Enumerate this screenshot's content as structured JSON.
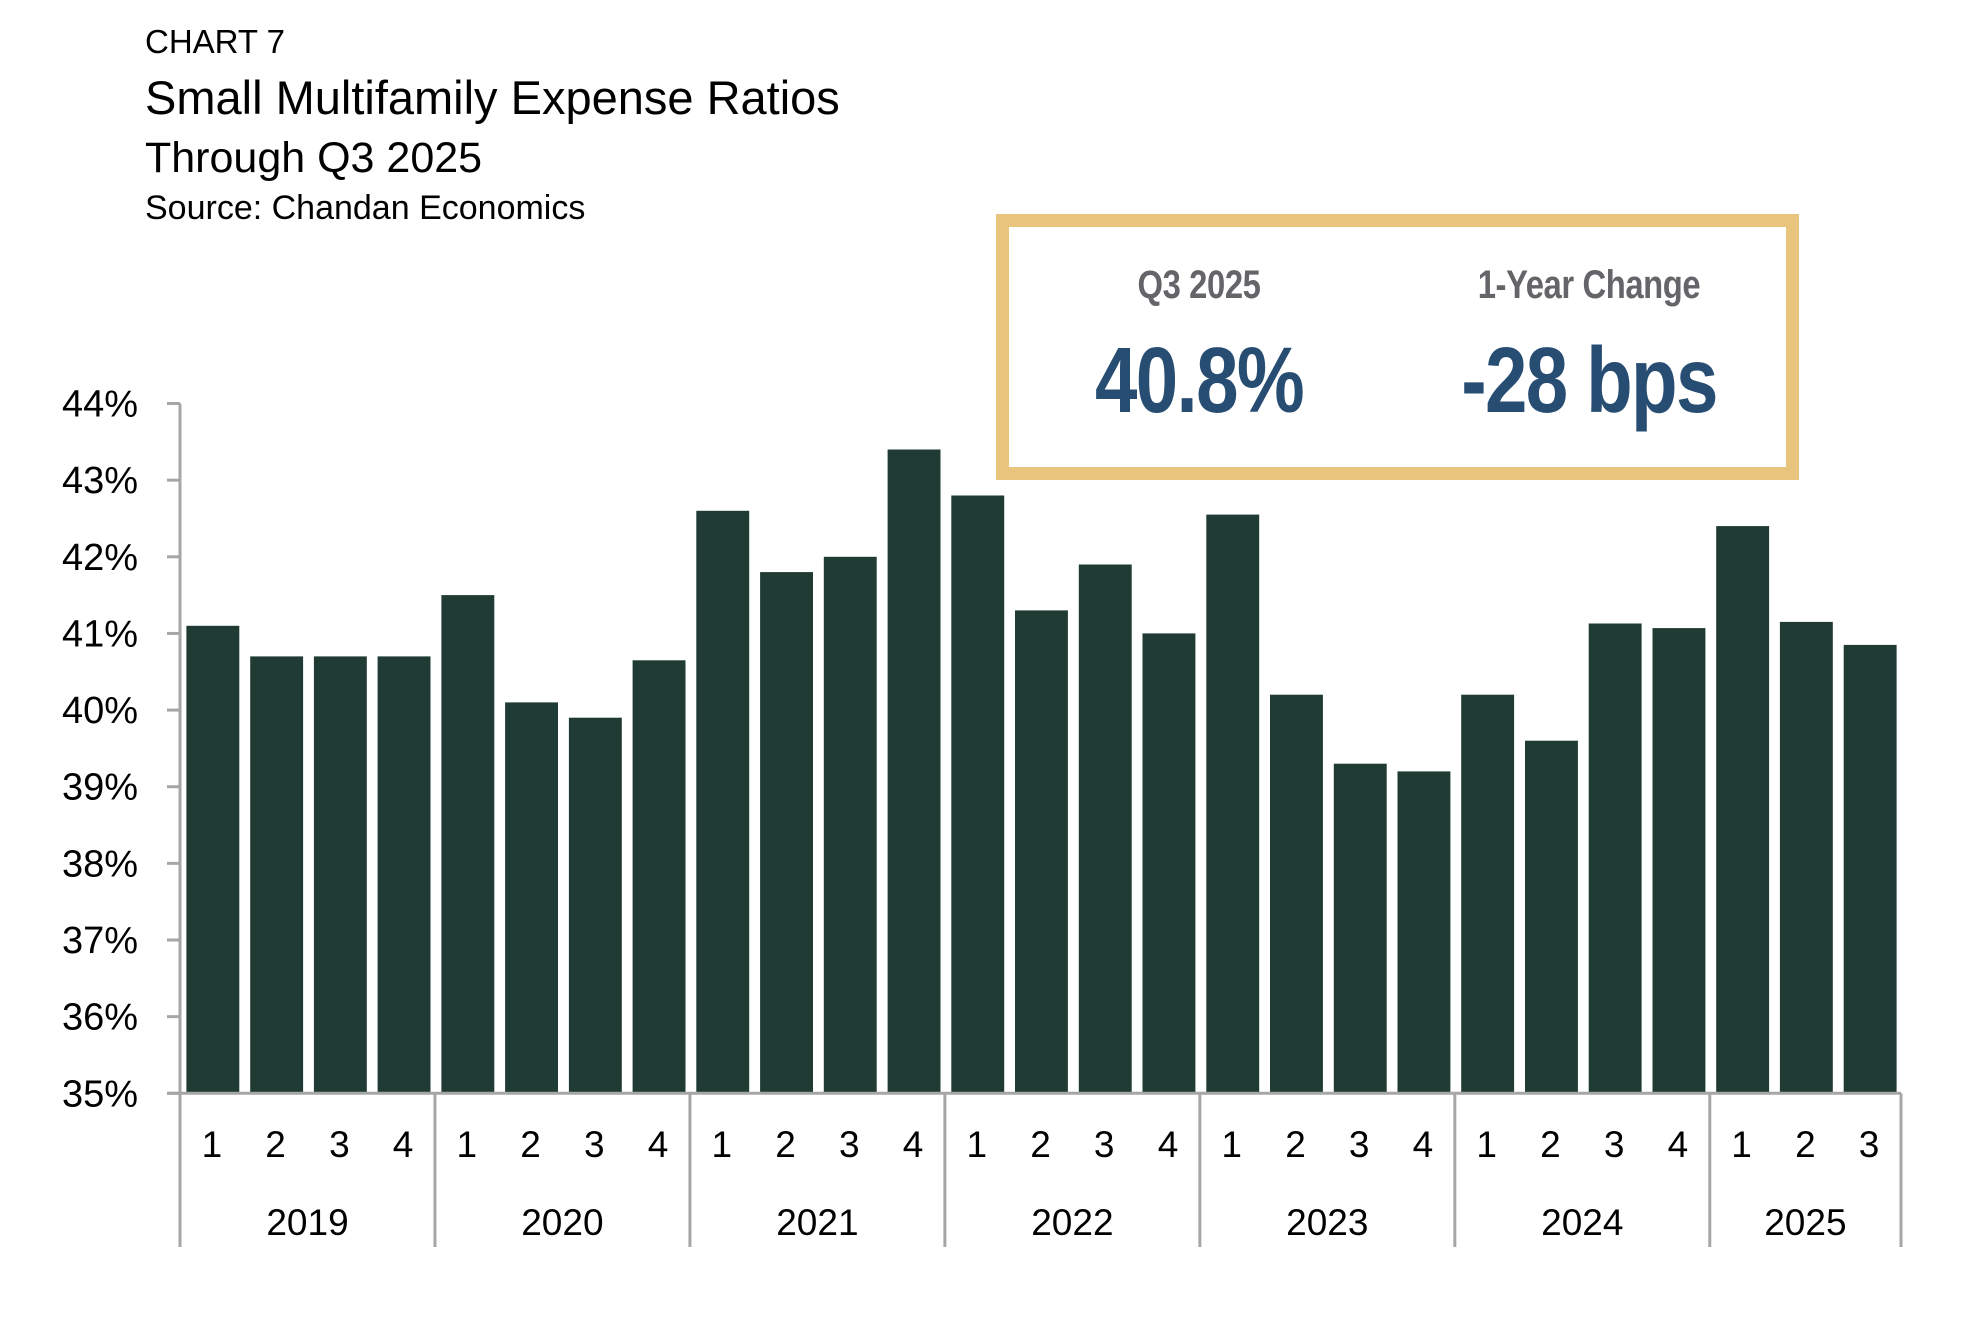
{
  "header": {
    "chart_label": "CHART 7",
    "title": "Small Multifamily Expense Ratios",
    "subtitle": "Through Q3 2025",
    "source": "Source: Chandan Economics"
  },
  "kpis": [
    {
      "label": "Q3 2025",
      "value": "40.8%"
    },
    {
      "label": "1-Year Change",
      "value": "-28 bps"
    }
  ],
  "colors": {
    "bar": "#1F3B33",
    "axis": "#A6A6A6",
    "kpi_border": "#E8C47C",
    "kpi_label": "#646569",
    "kpi_value": "#284D73"
  },
  "chart_data": {
    "type": "bar",
    "title": "Small Multifamily Expense Ratios",
    "subtitle": "Through Q3 2025",
    "source": "Chandan Economics",
    "xlabel": "",
    "ylabel": "",
    "ylim": [
      35,
      44
    ],
    "yticks": [
      35,
      36,
      37,
      38,
      39,
      40,
      41,
      42,
      43,
      44
    ],
    "ytick_format": "{v}%",
    "grid": false,
    "legend": "none",
    "groups": [
      {
        "year": "2019",
        "quarters": [
          "1",
          "2",
          "3",
          "4"
        ]
      },
      {
        "year": "2020",
        "quarters": [
          "1",
          "2",
          "3",
          "4"
        ]
      },
      {
        "year": "2021",
        "quarters": [
          "1",
          "2",
          "3",
          "4"
        ]
      },
      {
        "year": "2022",
        "quarters": [
          "1",
          "2",
          "3",
          "4"
        ]
      },
      {
        "year": "2023",
        "quarters": [
          "1",
          "2",
          "3",
          "4"
        ]
      },
      {
        "year": "2024",
        "quarters": [
          "1",
          "2",
          "3",
          "4"
        ]
      },
      {
        "year": "2025",
        "quarters": [
          "1",
          "2",
          "3"
        ]
      }
    ],
    "categories": [
      "2019 Q1",
      "2019 Q2",
      "2019 Q3",
      "2019 Q4",
      "2020 Q1",
      "2020 Q2",
      "2020 Q3",
      "2020 Q4",
      "2021 Q1",
      "2021 Q2",
      "2021 Q3",
      "2021 Q4",
      "2022 Q1",
      "2022 Q2",
      "2022 Q3",
      "2022 Q4",
      "2023 Q1",
      "2023 Q2",
      "2023 Q3",
      "2023 Q4",
      "2024 Q1",
      "2024 Q2",
      "2024 Q3",
      "2024 Q4",
      "2025 Q1",
      "2025 Q2",
      "2025 Q3"
    ],
    "values": [
      41.1,
      40.7,
      40.7,
      40.7,
      41.5,
      40.1,
      39.9,
      40.65,
      42.6,
      41.8,
      42.0,
      43.4,
      42.8,
      41.3,
      41.9,
      41.0,
      42.55,
      40.2,
      39.3,
      39.2,
      40.2,
      39.6,
      41.13,
      41.07,
      42.4,
      41.15,
      40.85
    ],
    "unit": "%"
  }
}
